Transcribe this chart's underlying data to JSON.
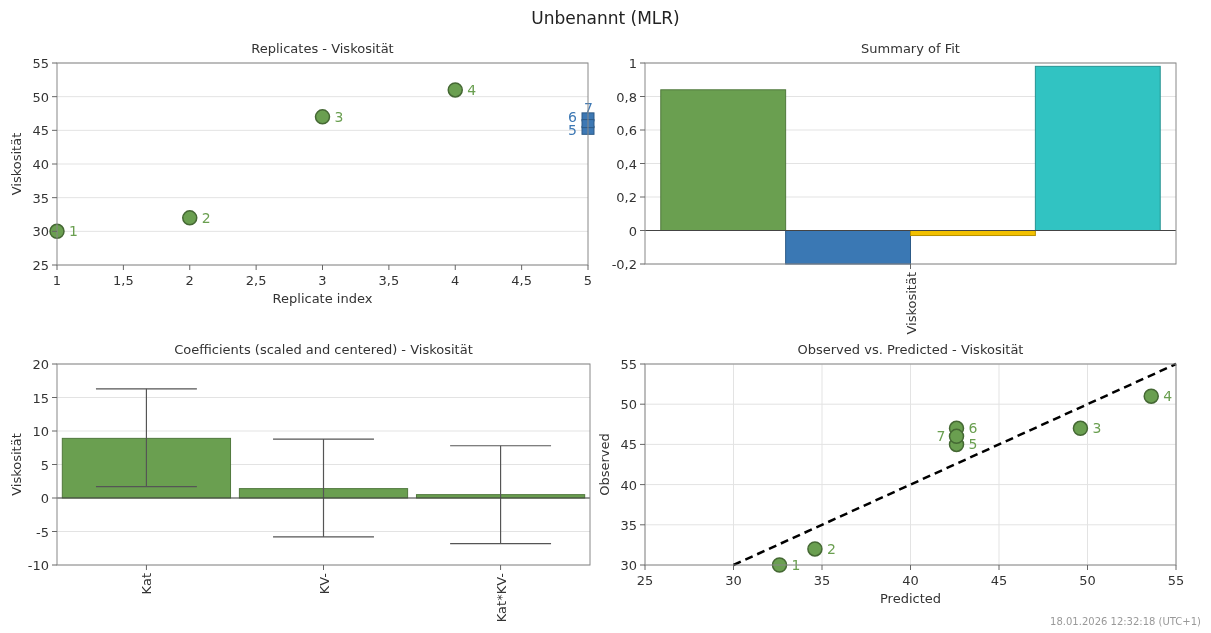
{
  "chart_data": [
    {
      "type": "other",
      "title": "Unbenannt (MLR)",
      "annotations": [
        "18.01.2026 12:32:18 (UTC+1)"
      ]
    },
    {
      "type": "scatter",
      "title": "Replicates - Viskosität",
      "xlabel": "Replicate index",
      "ylabel": "Viskosität",
      "xlim": [
        1,
        5
      ],
      "xticks": [
        1,
        {
          "value": 1.5,
          "label": "1,5"
        },
        2,
        {
          "value": 2.5,
          "label": "2,5"
        },
        3,
        {
          "value": 3.5,
          "label": "3,5"
        },
        4,
        {
          "value": 4.5,
          "label": "4,5"
        },
        5
      ],
      "ylim": [
        25,
        55
      ],
      "yticks": [
        25,
        30,
        35,
        40,
        45,
        50,
        55
      ],
      "grid": "y",
      "series": [
        {
          "x": [
            1,
            2,
            3,
            4
          ],
          "values": [
            30,
            32,
            47,
            51
          ],
          "color": "#6a9f50",
          "marker": "circle"
        },
        {
          "x": [
            5,
            5,
            5
          ],
          "values": [
            45,
            47,
            46
          ],
          "color": "#3d78b4",
          "marker": "square"
        }
      ],
      "annotations": [
        {
          "text": "1",
          "x": 1,
          "y": 30
        },
        {
          "text": "2",
          "x": 2,
          "y": 32
        },
        {
          "text": "3",
          "x": 3,
          "y": 47
        },
        {
          "text": "4",
          "x": 4,
          "y": 51
        },
        {
          "text": "5",
          "x": 5,
          "y": 45
        },
        {
          "text": "6",
          "x": 5,
          "y": 47
        },
        {
          "text": "7",
          "x": 5,
          "y": 46
        }
      ]
    },
    {
      "type": "bar",
      "title": "Summary of Fit",
      "categories": [
        "Viskosität"
      ],
      "ylim": [
        -0.2,
        1
      ],
      "yticks": [
        {
          "value": -0.2,
          "label": "-0,2"
        },
        0,
        {
          "value": 0.2,
          "label": "0,2"
        },
        {
          "value": 0.4,
          "label": "0,4"
        },
        {
          "value": 0.6,
          "label": "0,6"
        },
        {
          "value": 0.8,
          "label": "0,8"
        },
        1
      ],
      "grid": "y",
      "series": [
        {
          "values": [
            0.84
          ],
          "color": "#6a9f50"
        },
        {
          "values": [
            -0.2
          ],
          "color": "#3a78b4"
        },
        {
          "values": [
            -0.03
          ],
          "color": "#f2c000"
        },
        {
          "values": [
            0.98
          ],
          "color": "#31c3c2"
        }
      ]
    },
    {
      "type": "bar",
      "title": "Coefficients (scaled and centered) - Viskosität",
      "ylabel": "Viskosität",
      "categories": [
        "Kat",
        "KV-",
        "Kat*KV-"
      ],
      "values": [
        8.9,
        1.4,
        0.5
      ],
      "errors": [
        [
          1.7,
          16.3
        ],
        [
          -5.8,
          8.8
        ],
        [
          -6.8,
          7.8
        ]
      ],
      "color": "#6a9f50",
      "ylim": [
        -10,
        20
      ],
      "yticks": [
        -10,
        -5,
        0,
        5,
        10,
        15,
        20
      ],
      "grid": "y"
    },
    {
      "type": "scatter",
      "title": "Observed vs. Predicted - Viskosität",
      "xlabel": "Predicted",
      "ylabel": "Observed",
      "xlim": [
        25,
        55
      ],
      "xticks": [
        25,
        30,
        35,
        40,
        45,
        50,
        55
      ],
      "ylim": [
        30,
        55
      ],
      "yticks": [
        30,
        35,
        40,
        45,
        50,
        55
      ],
      "grid": true,
      "series": [
        {
          "x": [
            32.6,
            34.6,
            49.6,
            53.6,
            42.6,
            42.6,
            42.6
          ],
          "values": [
            30,
            32,
            47,
            51,
            45,
            47,
            46
          ],
          "color": "#6a9f50",
          "marker": "circle"
        },
        {
          "type": "line",
          "x": [
            30,
            55
          ],
          "values": [
            30,
            55
          ],
          "color": "#000000",
          "line_style": "dashed"
        }
      ],
      "annotations": [
        {
          "text": "1",
          "x": 32.6,
          "y": 30
        },
        {
          "text": "2",
          "x": 34.6,
          "y": 32
        },
        {
          "text": "3",
          "x": 49.6,
          "y": 47
        },
        {
          "text": "4",
          "x": 53.6,
          "y": 51
        },
        {
          "text": "5",
          "x": 42.6,
          "y": 45
        },
        {
          "text": "6",
          "x": 42.6,
          "y": 47
        },
        {
          "text": "7",
          "x": 42.6,
          "y": 46
        }
      ]
    }
  ]
}
